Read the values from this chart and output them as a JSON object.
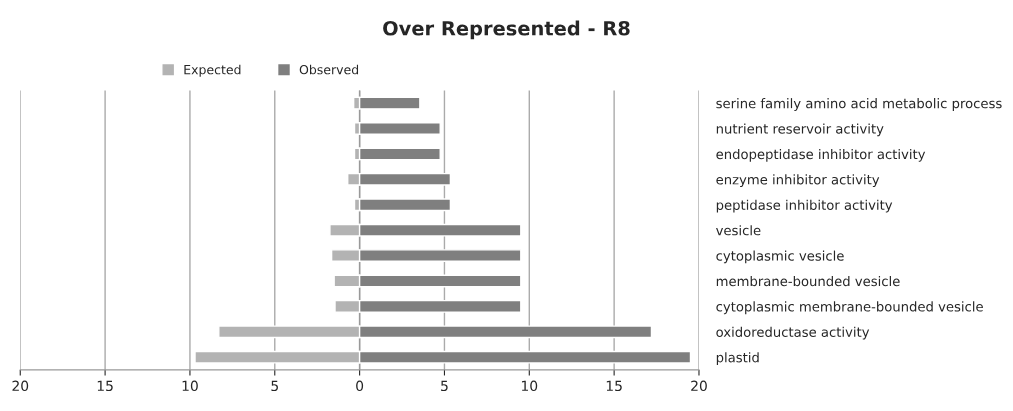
{
  "chart_data": {
    "type": "bar",
    "orientation": "horizontal",
    "title": "Over Represented - R8",
    "categories": [
      "serine family amino acid metabolic process",
      "nutrient reservoir activity",
      "endopeptidase inhibitor activity",
      "enzyme inhibitor activity",
      "peptidase inhibitor activity",
      "vesicle",
      "cytoplasmic vesicle",
      "membrane-bounded vesicle",
      "cytoplasmic membrane-bounded vesicle",
      "oxidoreductase activity",
      "plastid"
    ],
    "series": [
      {
        "name": "Expected",
        "color": "#b3b3b3",
        "values": [
          -0.35,
          -0.3,
          -0.3,
          -0.7,
          -0.3,
          -1.75,
          -1.65,
          -1.5,
          -1.45,
          -8.3,
          -9.7
        ]
      },
      {
        "name": "Observed",
        "color": "#7f7f7f",
        "values": [
          3.55,
          4.75,
          4.75,
          5.35,
          5.35,
          9.5,
          9.5,
          9.5,
          9.5,
          17.2,
          19.5
        ]
      }
    ],
    "xlim": [
      -20,
      20
    ],
    "xticks": [
      {
        "value": -20,
        "label": "20"
      },
      {
        "value": -15,
        "label": "15"
      },
      {
        "value": -10,
        "label": "10"
      },
      {
        "value": -5,
        "label": "5"
      },
      0,
      5,
      10,
      15,
      20
    ],
    "grid": "x",
    "stacked": true,
    "legend": "top left"
  }
}
